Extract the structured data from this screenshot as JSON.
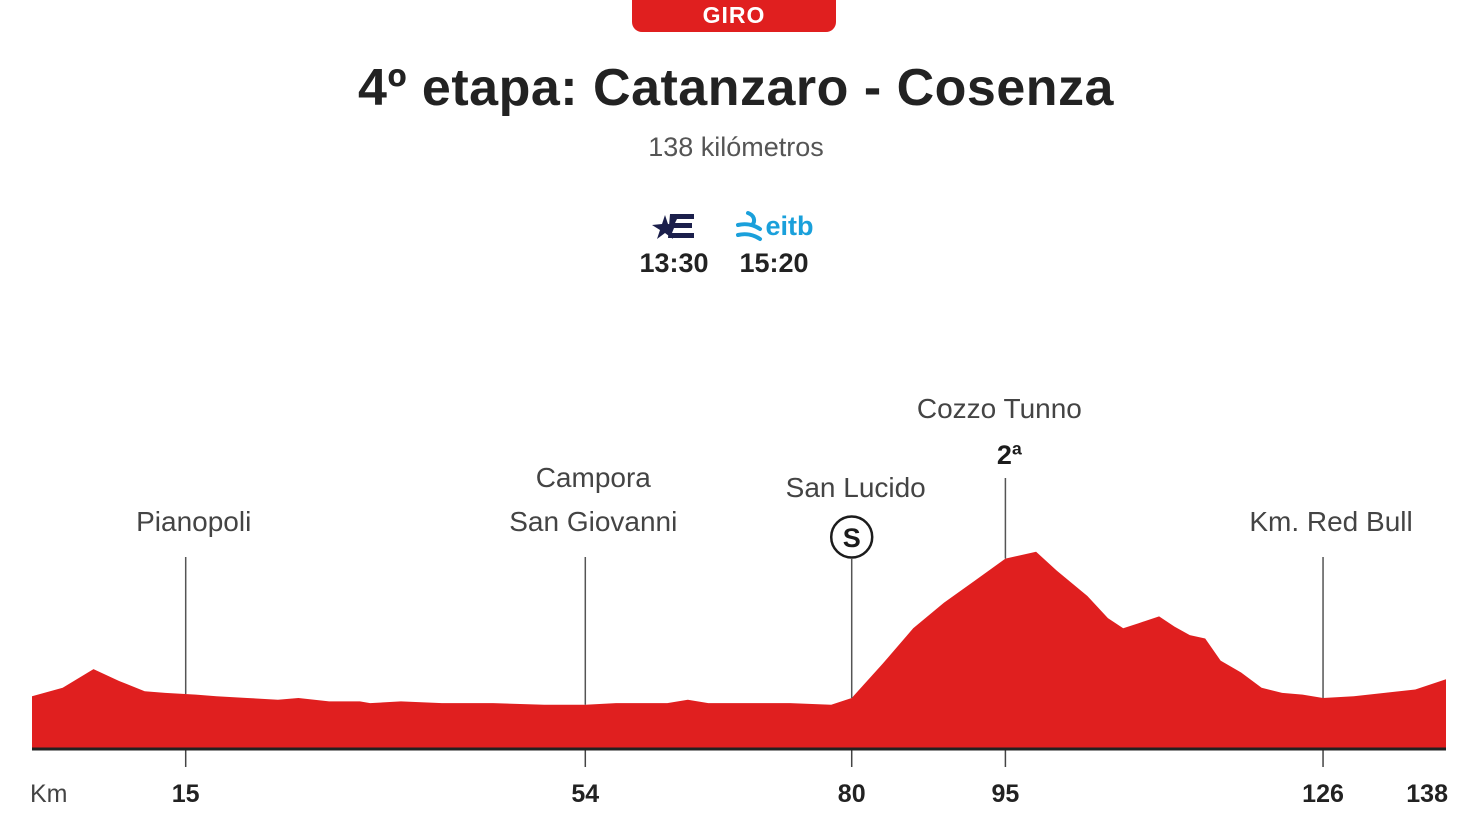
{
  "header": {
    "badge": "GIRO",
    "title": "4º etapa: Catanzaro - Cosenza",
    "subtitle": "138 kilómetros"
  },
  "broadcast": [
    {
      "channel_icon": "eurosport-e-icon",
      "time": "13:30"
    },
    {
      "channel_icon": "eitb-logo",
      "logo_text": "eitb",
      "time": "15:20"
    }
  ],
  "colors": {
    "profile": "#e01f1f",
    "badge": "#e01f1f",
    "eitb": "#1aa0db",
    "eurosport": "#1b1f4b"
  },
  "chart_data": {
    "type": "area",
    "title": "4º etapa: Catanzaro - Cosenza",
    "xlabel": "Km",
    "xlim": [
      0,
      138
    ],
    "xticks": [
      15,
      54,
      80,
      95,
      126,
      138
    ],
    "elevation_relative": [
      [
        0,
        0.31
      ],
      [
        3,
        0.36
      ],
      [
        6,
        0.47
      ],
      [
        8.5,
        0.4
      ],
      [
        11,
        0.34
      ],
      [
        13,
        0.33
      ],
      [
        16,
        0.32
      ],
      [
        18,
        0.31
      ],
      [
        21,
        0.3
      ],
      [
        24,
        0.29
      ],
      [
        26,
        0.3
      ],
      [
        29,
        0.28
      ],
      [
        32,
        0.28
      ],
      [
        33,
        0.27
      ],
      [
        36,
        0.28
      ],
      [
        40,
        0.27
      ],
      [
        45,
        0.27
      ],
      [
        50,
        0.26
      ],
      [
        54,
        0.26
      ],
      [
        57,
        0.27
      ],
      [
        62,
        0.27
      ],
      [
        64,
        0.29
      ],
      [
        66,
        0.27
      ],
      [
        70,
        0.27
      ],
      [
        74,
        0.27
      ],
      [
        78,
        0.26
      ],
      [
        80,
        0.3
      ],
      [
        83,
        0.5
      ],
      [
        86,
        0.71
      ],
      [
        89,
        0.86
      ],
      [
        92,
        0.99
      ],
      [
        95,
        1.12
      ],
      [
        98,
        1.16
      ],
      [
        100,
        1.05
      ],
      [
        103,
        0.9
      ],
      [
        105,
        0.77
      ],
      [
        106.5,
        0.71
      ],
      [
        108,
        0.74
      ],
      [
        110,
        0.78
      ],
      [
        111.5,
        0.72
      ],
      [
        113,
        0.67
      ],
      [
        114.5,
        0.65
      ],
      [
        116,
        0.52
      ],
      [
        118,
        0.45
      ],
      [
        120,
        0.36
      ],
      [
        122,
        0.33
      ],
      [
        124,
        0.32
      ],
      [
        126,
        0.3
      ],
      [
        129,
        0.31
      ],
      [
        132,
        0.33
      ],
      [
        135,
        0.35
      ],
      [
        138,
        0.41
      ]
    ],
    "points": [
      {
        "km": 15,
        "name": "Pianopoli"
      },
      {
        "km": 54,
        "name": "Campora San Giovanni",
        "name_lines": [
          "Campora",
          "San Giovanni"
        ]
      },
      {
        "km": 80,
        "name": "San Lucido",
        "marker": "S"
      },
      {
        "km": 95,
        "name": "Cozzo Tunno",
        "category": "2ª"
      },
      {
        "km": 126,
        "name": "Km. Red Bull"
      }
    ]
  }
}
